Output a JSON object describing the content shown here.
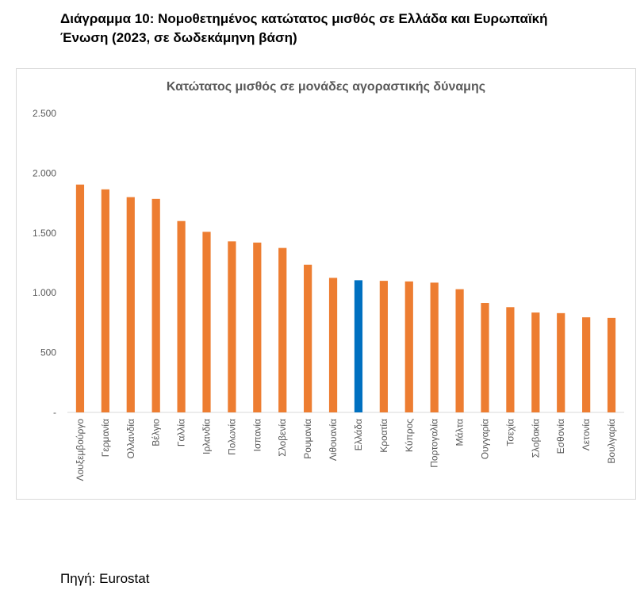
{
  "document": {
    "title_line1": "Διάγραμμα 10: Νομοθετημένος κατώτατος μισθός σε Ελλάδα και Ευρωπαϊκή",
    "title_line2": "Ένωση  (2023, σε δωδεκάμηνη βάση)",
    "source": "Πηγή: Eurostat"
  },
  "colors": {
    "bar_default": "#ED7D31",
    "bar_highlight": "#0070C0",
    "axis_text": "#595959",
    "axis_line": "#d9d9d9"
  },
  "chart_data": {
    "type": "bar",
    "title": "Κατώτατος μισθός σε μονάδες αγοραστικής δύναμης",
    "xlabel": "",
    "ylabel": "",
    "ylim": [
      0,
      2500
    ],
    "yticks": [
      0,
      500,
      1000,
      1500,
      2000,
      2500
    ],
    "ytick_labels": [
      "-",
      "500",
      "1.000",
      "1.500",
      "2.000",
      "2.500"
    ],
    "grid": false,
    "legend": "none",
    "highlight_category": "Ελλάδα",
    "categories": [
      "Λουξεμβούργο",
      "Γερμανία",
      "Ολλανδία",
      "Βέλγιο",
      "Γαλλία",
      "Ιρλανδία",
      "Πολωνία",
      "Ισπανία",
      "Σλοβενία",
      "Ρουμανία",
      "Λιθουανία",
      "Ελλάδα",
      "Κροατία",
      "Κύπρος",
      "Πορτογαλία",
      "Μάλτα",
      "Ουγγαρία",
      "Τσεχία",
      "Σλοβακία",
      "Εσθονία",
      "Λετονία",
      "Βουλγαρία"
    ],
    "values": [
      1905,
      1865,
      1800,
      1785,
      1600,
      1510,
      1430,
      1420,
      1375,
      1235,
      1125,
      1105,
      1100,
      1095,
      1085,
      1030,
      915,
      880,
      835,
      830,
      795,
      790
    ]
  }
}
